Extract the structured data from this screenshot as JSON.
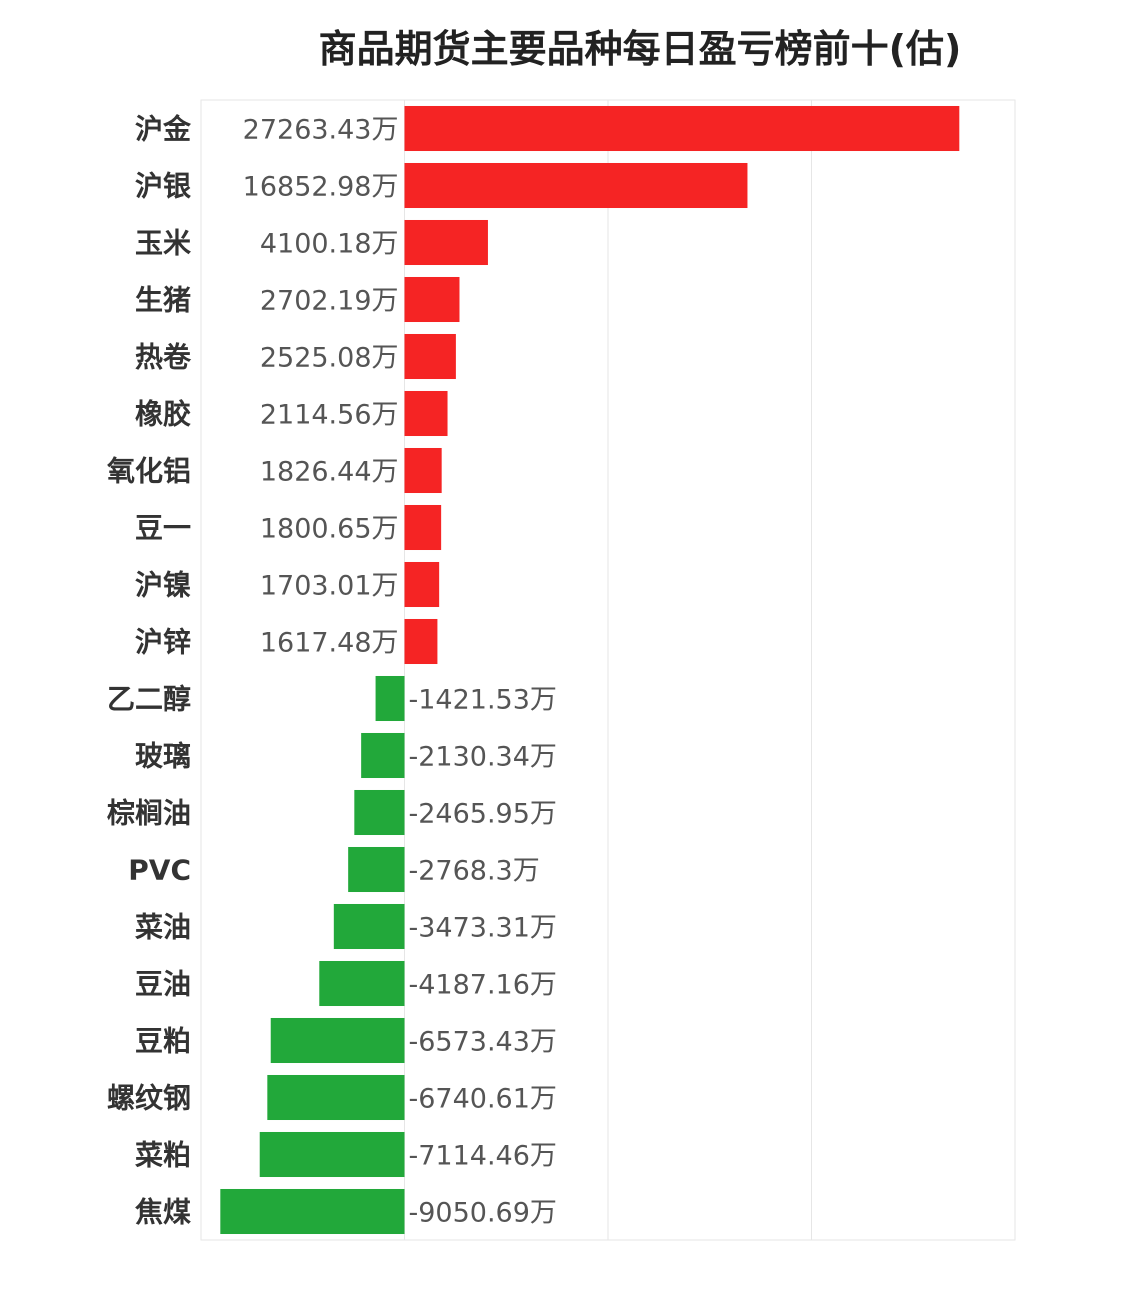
{
  "chart_data": {
    "type": "bar",
    "orientation": "horizontal",
    "title": "商品期货主要品种每日盈亏榜前十(估)",
    "unit_suffix": "万",
    "categories": [
      "沪金",
      "沪银",
      "玉米",
      "生猪",
      "热卷",
      "橡胶",
      "氧化铝",
      "豆一",
      "沪镍",
      "沪锌",
      "乙二醇",
      "玻璃",
      "棕榈油",
      "PVC",
      "菜油",
      "豆油",
      "豆粕",
      "螺纹钢",
      "菜粕",
      "焦煤"
    ],
    "values": [
      27263.43,
      16852.98,
      4100.18,
      2702.19,
      2525.08,
      2114.56,
      1826.44,
      1800.65,
      1703.01,
      1617.48,
      -1421.53,
      -2130.34,
      -2465.95,
      -2768.3,
      -3473.31,
      -4187.16,
      -6573.43,
      -6740.61,
      -7114.46,
      -9050.69
    ],
    "labels": [
      "27263.43万",
      "16852.98万",
      "4100.18万",
      "2702.19万",
      "2525.08万",
      "2114.56万",
      "1826.44万",
      "1800.65万",
      "1703.01万",
      "1617.48万",
      "-1421.53万",
      "-2130.34万",
      "-2465.95万",
      "-2768.3万",
      "-3473.31万",
      "-4187.16万",
      "-6573.43万",
      "-6740.61万",
      "-7114.46万",
      "-9050.69万"
    ],
    "xlim": [
      -10000,
      30000
    ],
    "grid": true,
    "colors": {
      "positive": "#f52424",
      "negative": "#22a83a",
      "grid": "#e6e6e6"
    }
  }
}
